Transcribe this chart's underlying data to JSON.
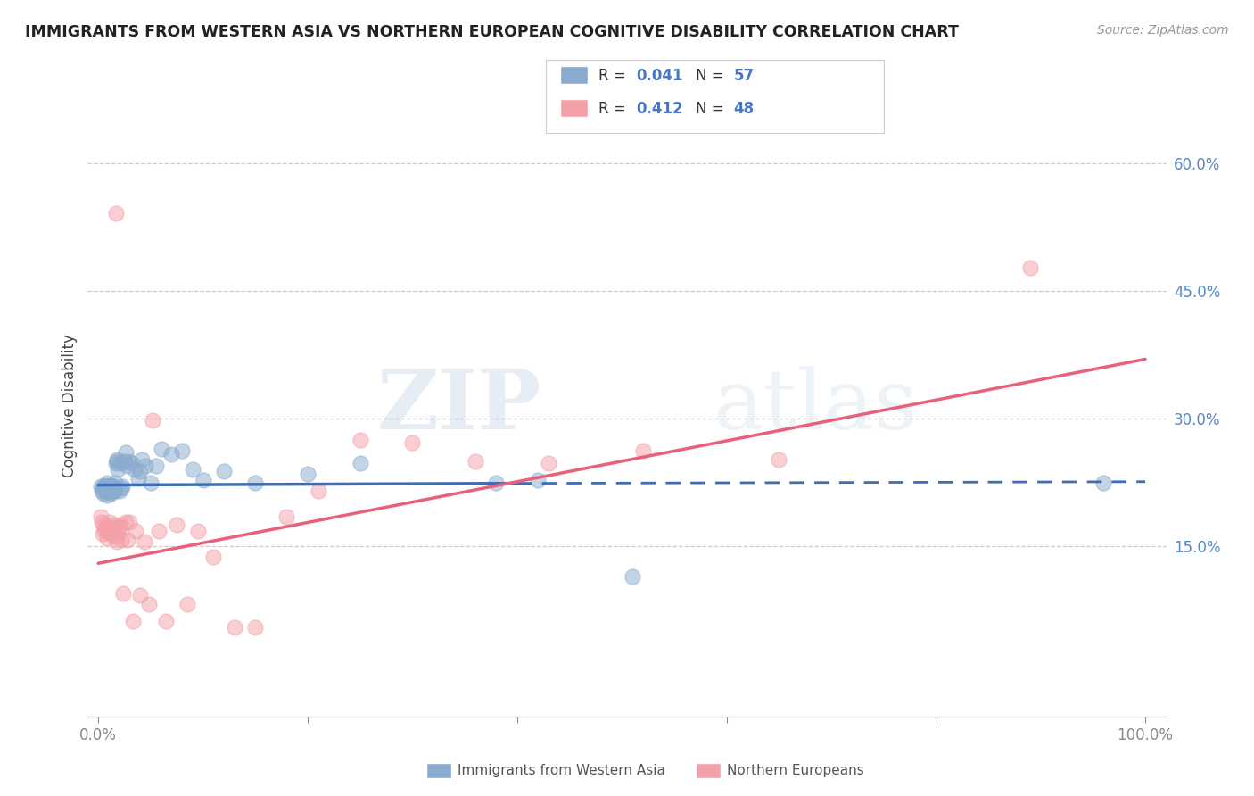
{
  "title": "IMMIGRANTS FROM WESTERN ASIA VS NORTHERN EUROPEAN COGNITIVE DISABILITY CORRELATION CHART",
  "source": "Source: ZipAtlas.com",
  "ylabel": "Cognitive Disability",
  "xlim": [
    -0.01,
    1.02
  ],
  "ylim": [
    -0.05,
    0.68
  ],
  "xtick_positions": [
    0.0,
    0.2,
    0.4,
    0.6,
    0.8,
    1.0
  ],
  "xticklabels": [
    "0.0%",
    "",
    "",
    "",
    "",
    "100.0%"
  ],
  "yticks_right": [
    0.15,
    0.3,
    0.45,
    0.6
  ],
  "ytick_right_labels": [
    "15.0%",
    "30.0%",
    "45.0%",
    "60.0%"
  ],
  "legend_label1": "Immigrants from Western Asia",
  "legend_label2": "Northern Europeans",
  "blue_color": "#89ABCF",
  "pink_color": "#F4A0A8",
  "line_blue_color": "#3D6DB5",
  "line_pink_color": "#E8607A",
  "watermark_zip": "ZIP",
  "watermark_atlas": "atlas",
  "blue_scatter_x": [
    0.002,
    0.003,
    0.004,
    0.005,
    0.005,
    0.006,
    0.007,
    0.007,
    0.008,
    0.008,
    0.009,
    0.01,
    0.01,
    0.011,
    0.011,
    0.012,
    0.012,
    0.013,
    0.013,
    0.014,
    0.014,
    0.015,
    0.016,
    0.016,
    0.017,
    0.018,
    0.018,
    0.019,
    0.02,
    0.021,
    0.022,
    0.023,
    0.025,
    0.026,
    0.028,
    0.03,
    0.032,
    0.035,
    0.038,
    0.04,
    0.042,
    0.045,
    0.05,
    0.055,
    0.06,
    0.07,
    0.08,
    0.09,
    0.1,
    0.12,
    0.15,
    0.2,
    0.25,
    0.38,
    0.42,
    0.51,
    0.96
  ],
  "blue_scatter_y": [
    0.22,
    0.215,
    0.218,
    0.212,
    0.22,
    0.218,
    0.215,
    0.222,
    0.21,
    0.225,
    0.215,
    0.218,
    0.222,
    0.215,
    0.22,
    0.212,
    0.218,
    0.215,
    0.222,
    0.215,
    0.22,
    0.218,
    0.225,
    0.215,
    0.248,
    0.25,
    0.252,
    0.24,
    0.215,
    0.248,
    0.218,
    0.22,
    0.25,
    0.26,
    0.245,
    0.25,
    0.248,
    0.24,
    0.23,
    0.238,
    0.252,
    0.245,
    0.225,
    0.245,
    0.265,
    0.258,
    0.262,
    0.24,
    0.228,
    0.238,
    0.225,
    0.235,
    0.248,
    0.225,
    0.228,
    0.115,
    0.225
  ],
  "pink_scatter_x": [
    0.002,
    0.003,
    0.004,
    0.005,
    0.006,
    0.007,
    0.008,
    0.009,
    0.01,
    0.011,
    0.012,
    0.013,
    0.014,
    0.015,
    0.016,
    0.017,
    0.018,
    0.019,
    0.02,
    0.021,
    0.022,
    0.024,
    0.026,
    0.028,
    0.03,
    0.033,
    0.036,
    0.04,
    0.044,
    0.048,
    0.052,
    0.058,
    0.065,
    0.075,
    0.085,
    0.095,
    0.11,
    0.13,
    0.15,
    0.18,
    0.21,
    0.25,
    0.3,
    0.36,
    0.43,
    0.52,
    0.65,
    0.89
  ],
  "pink_scatter_y": [
    0.185,
    0.178,
    0.165,
    0.175,
    0.168,
    0.172,
    0.16,
    0.168,
    0.17,
    0.178,
    0.165,
    0.172,
    0.168,
    0.175,
    0.162,
    0.542,
    0.155,
    0.165,
    0.172,
    0.175,
    0.158,
    0.095,
    0.178,
    0.158,
    0.178,
    0.062,
    0.168,
    0.092,
    0.155,
    0.082,
    0.298,
    0.168,
    0.062,
    0.175,
    0.082,
    0.168,
    0.138,
    0.055,
    0.055,
    0.185,
    0.215,
    0.275,
    0.272,
    0.25,
    0.248,
    0.262,
    0.252,
    0.478
  ],
  "blue_line_start_x": 0.0,
  "blue_line_start_y": 0.222,
  "blue_line_solid_end_x": 0.4,
  "blue_line_solid_end_y": 0.224,
  "blue_line_dash_end_x": 1.0,
  "blue_line_dash_end_y": 0.226,
  "pink_line_start_x": 0.0,
  "pink_line_start_y": 0.13,
  "pink_line_end_x": 1.0,
  "pink_line_end_y": 0.37
}
